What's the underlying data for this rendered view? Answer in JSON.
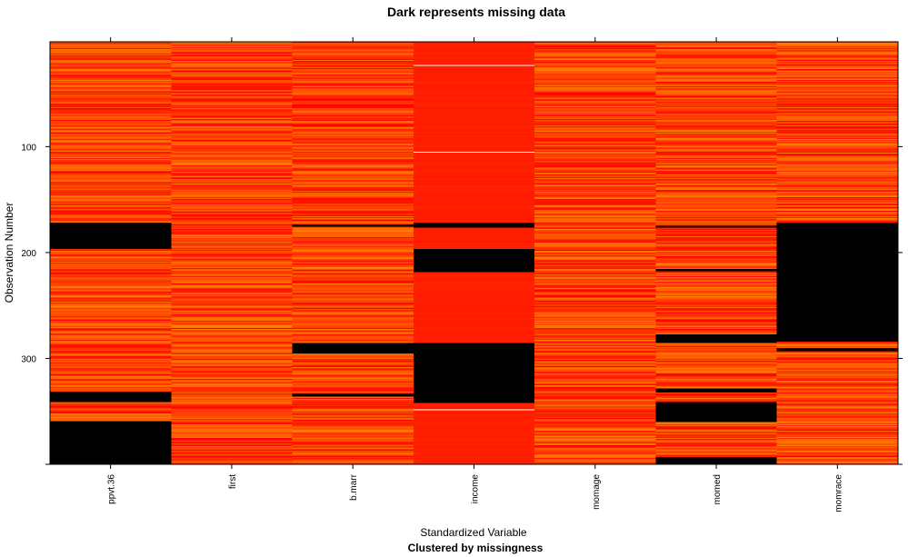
{
  "chart_data": {
    "type": "heatmap",
    "title": "Dark represents missing data",
    "xlabel": "Standardized Variable",
    "xlabel_sub": "Clustered by missingness",
    "ylabel": "Observation Number",
    "n_observations": 400,
    "ylim": [
      1,
      400
    ],
    "y_ticks": [
      100,
      200,
      300
    ],
    "variables": [
      "ppvt.36",
      "first",
      "b.marr",
      "income",
      "momage",
      "momed",
      "momrace"
    ],
    "color_scale": {
      "low": "#ff0000",
      "high": "#ff7f00",
      "missing": "#000000",
      "extreme": "#ffffff"
    },
    "missing_ranges": {
      "ppvt.36": [
        [
          172,
          196
        ],
        [
          332,
          341
        ],
        [
          360,
          400
        ]
      ],
      "first": [],
      "b.marr": [
        [
          174,
          175
        ],
        [
          286,
          295
        ],
        [
          334,
          336
        ]
      ],
      "income": [
        [
          172,
          176
        ],
        [
          197,
          218
        ],
        [
          286,
          342
        ]
      ],
      "momage": [],
      "momed": [
        [
          175,
          176
        ],
        [
          216,
          217
        ],
        [
          278,
          285
        ],
        [
          329,
          332
        ],
        [
          342,
          360
        ],
        [
          394,
          400
        ]
      ],
      "momrace": [
        [
          172,
          284
        ],
        [
          291,
          293
        ]
      ]
    },
    "extreme_rows": {
      "income": [
        23,
        105,
        349
      ]
    },
    "grid": false,
    "legend": "none"
  }
}
